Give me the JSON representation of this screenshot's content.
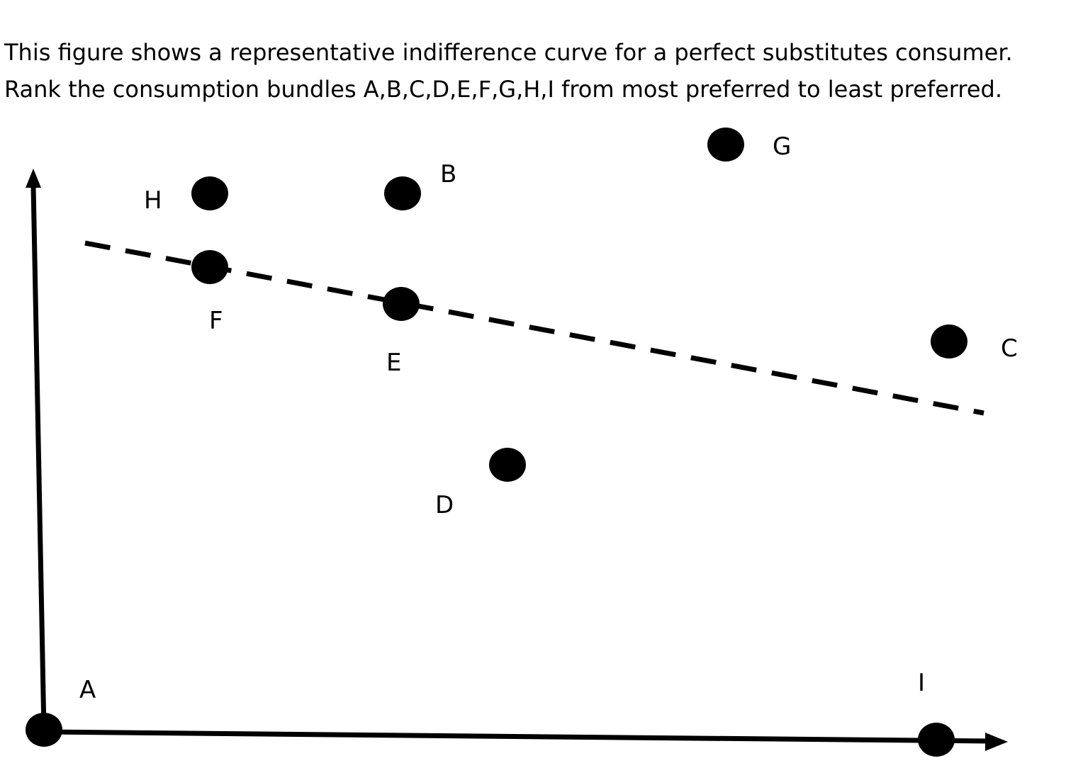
{
  "question_text": "This figure shows a representative indifference curve for a perfect substitutes consumer.  Rank the consumption bundles A,B,C,D,E,F,G,H,I from most preferred to least preferred.",
  "points": [
    {
      "id": "A",
      "label": "A"
    },
    {
      "id": "B",
      "label": "B"
    },
    {
      "id": "C",
      "label": "C"
    },
    {
      "id": "D",
      "label": "D"
    },
    {
      "id": "E",
      "label": "E"
    },
    {
      "id": "F",
      "label": "F"
    },
    {
      "id": "G",
      "label": "G"
    },
    {
      "id": "H",
      "label": "H"
    },
    {
      "id": "I",
      "label": "I"
    }
  ],
  "colors": {
    "ink": "#000000",
    "background": "#ffffff"
  }
}
